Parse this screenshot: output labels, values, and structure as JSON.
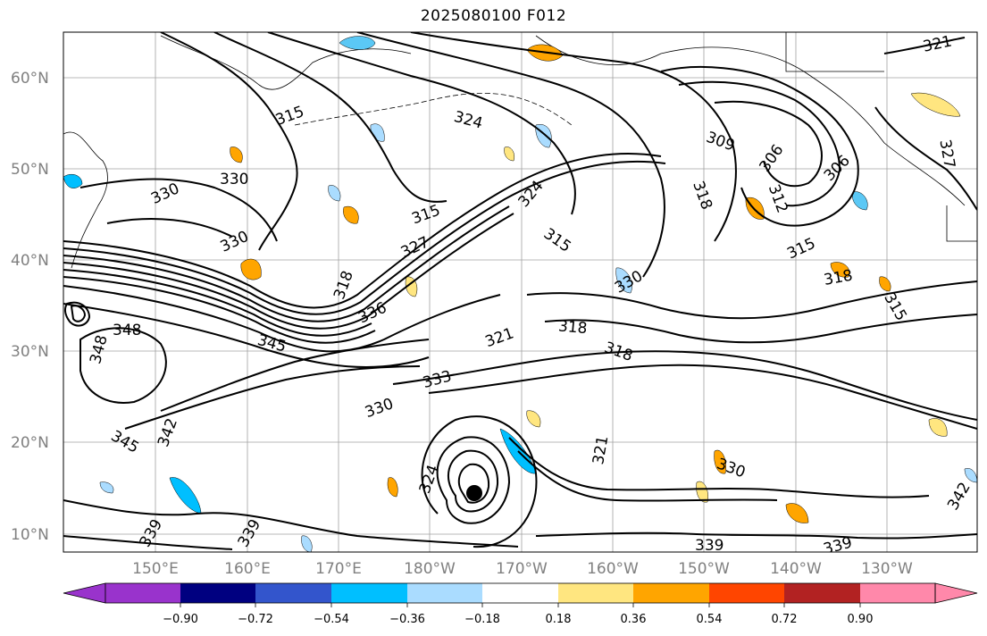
{
  "title": "2025080100 F012",
  "map": {
    "lat_labels": [
      "60°N",
      "50°N",
      "40°N",
      "30°N",
      "20°N",
      "10°N"
    ],
    "lon_labels": [
      "150°E",
      "160°E",
      "170°E",
      "180°W",
      "170°W",
      "160°W",
      "150°W",
      "140°W",
      "130°W"
    ],
    "contour_labels": [
      "315",
      "324",
      "309",
      "306",
      "306",
      "321",
      "330",
      "330",
      "315",
      "324",
      "315",
      "327",
      "330",
      "312",
      "315",
      "318",
      "327",
      "318",
      "336",
      "315",
      "330",
      "318",
      "348",
      "348",
      "345",
      "321",
      "318",
      "318",
      "333",
      "330",
      "345",
      "342",
      "324",
      "330",
      "321",
      "342",
      "339",
      "339",
      "339",
      "339"
    ]
  },
  "colorbar": {
    "tick_labels": [
      "−0.90",
      "−0.72",
      "−0.54",
      "−0.36",
      "−0.18",
      "0.18",
      "0.36",
      "0.54",
      "0.72",
      "0.90"
    ],
    "colors": [
      "#9933cc",
      "#000080",
      "#3355cc",
      "#00bfff",
      "#aadcff",
      "#ffffff",
      "#ffe680",
      "#ffa500",
      "#ff4500",
      "#b22222",
      "#ff88aa"
    ]
  }
}
